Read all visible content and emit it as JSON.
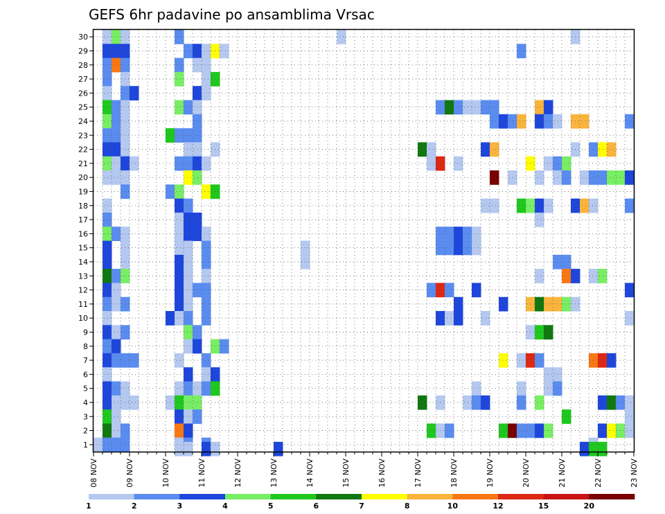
{
  "chart_data": {
    "type": "heatmap",
    "title": "GEFS 6hr padavine po ansamblima Vrsac",
    "x_tick_labels": [
      "08 NOV",
      "09 NOV",
      "10 NOV",
      "11 NOV",
      "12 NOV",
      "13 NOV",
      "14 NOV",
      "15 NOV",
      "16 NOV",
      "17 NOV",
      "18 NOV",
      "19 NOV",
      "20 NOV",
      "21 NOV",
      "22 NOV",
      "23 NOV"
    ],
    "xlim": [
      0,
      60
    ],
    "ylim": [
      0.5,
      30.5
    ],
    "y_ticks": [
      1,
      2,
      3,
      4,
      5,
      6,
      7,
      8,
      9,
      10,
      11,
      12,
      13,
      14,
      15,
      16,
      17,
      18,
      19,
      20,
      21,
      22,
      23,
      24,
      25,
      26,
      27,
      28,
      29,
      30
    ],
    "grid": true,
    "legend_placement": "bottom",
    "color_scale": {
      "labels": [
        "1",
        "2",
        "3",
        "4",
        "5",
        "6",
        "7",
        "8",
        "10",
        "12",
        "15",
        "20"
      ],
      "colors": [
        "#b4c8f0",
        "#5a8cf0",
        "#1e46dc",
        "#78ee64",
        "#1ec81e",
        "#10780f",
        "#ffff00",
        "#fab43c",
        "#fa7814",
        "#dc2814",
        "#c81414",
        "#780000"
      ]
    },
    "cells": [
      [
        1,
        30,
        0
      ],
      [
        2,
        30,
        3
      ],
      [
        3,
        30,
        0
      ],
      [
        9,
        30,
        1
      ],
      [
        27,
        30,
        0
      ],
      [
        53,
        30,
        0
      ],
      [
        1,
        29,
        2
      ],
      [
        2,
        29,
        2
      ],
      [
        3,
        29,
        2
      ],
      [
        10,
        29,
        1
      ],
      [
        11,
        29,
        2
      ],
      [
        12,
        29,
        0
      ],
      [
        13,
        29,
        6
      ],
      [
        14,
        29,
        0
      ],
      [
        47,
        29,
        1
      ],
      [
        1,
        28,
        1
      ],
      [
        2,
        28,
        8
      ],
      [
        3,
        28,
        1
      ],
      [
        9,
        28,
        1
      ],
      [
        11,
        28,
        0
      ],
      [
        12,
        28,
        0
      ],
      [
        1,
        27,
        1
      ],
      [
        3,
        27,
        0
      ],
      [
        9,
        27,
        3
      ],
      [
        12,
        27,
        0
      ],
      [
        13,
        27,
        4
      ],
      [
        1,
        26,
        0
      ],
      [
        3,
        26,
        1
      ],
      [
        4,
        26,
        2
      ],
      [
        11,
        26,
        2
      ],
      [
        12,
        26,
        0
      ],
      [
        1,
        25,
        4
      ],
      [
        2,
        25,
        1
      ],
      [
        3,
        25,
        0
      ],
      [
        9,
        25,
        3
      ],
      [
        10,
        25,
        1
      ],
      [
        11,
        25,
        0
      ],
      [
        38,
        25,
        1
      ],
      [
        39,
        25,
        5
      ],
      [
        40,
        25,
        1
      ],
      [
        41,
        25,
        0
      ],
      [
        42,
        25,
        0
      ],
      [
        43,
        25,
        1
      ],
      [
        44,
        25,
        1
      ],
      [
        49,
        25,
        7
      ],
      [
        50,
        25,
        2
      ],
      [
        1,
        24,
        3
      ],
      [
        2,
        24,
        1
      ],
      [
        3,
        24,
        0
      ],
      [
        11,
        24,
        1
      ],
      [
        44,
        24,
        1
      ],
      [
        45,
        24,
        2
      ],
      [
        46,
        24,
        1
      ],
      [
        47,
        24,
        7
      ],
      [
        49,
        24,
        2
      ],
      [
        50,
        24,
        1
      ],
      [
        51,
        24,
        0
      ],
      [
        53,
        24,
        7
      ],
      [
        54,
        24,
        7
      ],
      [
        59,
        24,
        1
      ],
      [
        1,
        23,
        1
      ],
      [
        2,
        23,
        1
      ],
      [
        3,
        23,
        0
      ],
      [
        8,
        23,
        4
      ],
      [
        9,
        23,
        1
      ],
      [
        10,
        23,
        1
      ],
      [
        11,
        23,
        1
      ],
      [
        1,
        22,
        2
      ],
      [
        2,
        22,
        2
      ],
      [
        3,
        22,
        0
      ],
      [
        10,
        22,
        0
      ],
      [
        11,
        22,
        0
      ],
      [
        13,
        22,
        0
      ],
      [
        36,
        22,
        5
      ],
      [
        37,
        22,
        0
      ],
      [
        43,
        22,
        2
      ],
      [
        44,
        22,
        7
      ],
      [
        53,
        22,
        0
      ],
      [
        55,
        22,
        1
      ],
      [
        56,
        22,
        6
      ],
      [
        57,
        22,
        7
      ],
      [
        1,
        21,
        3
      ],
      [
        2,
        21,
        0
      ],
      [
        3,
        21,
        2
      ],
      [
        4,
        21,
        0
      ],
      [
        9,
        21,
        1
      ],
      [
        10,
        21,
        1
      ],
      [
        11,
        21,
        2
      ],
      [
        12,
        21,
        0
      ],
      [
        37,
        21,
        0
      ],
      [
        38,
        21,
        9
      ],
      [
        40,
        21,
        0
      ],
      [
        48,
        21,
        6
      ],
      [
        50,
        21,
        0
      ],
      [
        51,
        21,
        1
      ],
      [
        52,
        21,
        3
      ],
      [
        1,
        20,
        0
      ],
      [
        2,
        20,
        0
      ],
      [
        3,
        20,
        0
      ],
      [
        10,
        20,
        6
      ],
      [
        11,
        20,
        3
      ],
      [
        44,
        20,
        11
      ],
      [
        46,
        20,
        0
      ],
      [
        49,
        20,
        0
      ],
      [
        51,
        20,
        0
      ],
      [
        52,
        20,
        1
      ],
      [
        54,
        20,
        0
      ],
      [
        55,
        20,
        1
      ],
      [
        56,
        20,
        1
      ],
      [
        57,
        20,
        3
      ],
      [
        58,
        20,
        3
      ],
      [
        59,
        20,
        2
      ],
      [
        3,
        19,
        1
      ],
      [
        8,
        19,
        1
      ],
      [
        9,
        19,
        3
      ],
      [
        12,
        19,
        6
      ],
      [
        13,
        19,
        4
      ],
      [
        1,
        18,
        0
      ],
      [
        9,
        18,
        2
      ],
      [
        10,
        18,
        1
      ],
      [
        43,
        18,
        0
      ],
      [
        44,
        18,
        0
      ],
      [
        47,
        18,
        4
      ],
      [
        48,
        18,
        3
      ],
      [
        49,
        18,
        2
      ],
      [
        50,
        18,
        0
      ],
      [
        53,
        18,
        2
      ],
      [
        54,
        18,
        7
      ],
      [
        55,
        18,
        0
      ],
      [
        59,
        18,
        1
      ],
      [
        1,
        17,
        1
      ],
      [
        9,
        17,
        0
      ],
      [
        10,
        17,
        2
      ],
      [
        11,
        17,
        2
      ],
      [
        49,
        17,
        0
      ],
      [
        1,
        16,
        3
      ],
      [
        2,
        16,
        1
      ],
      [
        3,
        16,
        0
      ],
      [
        9,
        16,
        0
      ],
      [
        10,
        16,
        2
      ],
      [
        11,
        16,
        2
      ],
      [
        12,
        16,
        0
      ],
      [
        38,
        16,
        1
      ],
      [
        39,
        16,
        1
      ],
      [
        40,
        16,
        2
      ],
      [
        41,
        16,
        1
      ],
      [
        42,
        16,
        0
      ],
      [
        1,
        15,
        2
      ],
      [
        3,
        15,
        0
      ],
      [
        9,
        15,
        0
      ],
      [
        10,
        15,
        0
      ],
      [
        12,
        15,
        1
      ],
      [
        23,
        15,
        0
      ],
      [
        38,
        15,
        1
      ],
      [
        39,
        15,
        1
      ],
      [
        40,
        15,
        2
      ],
      [
        41,
        15,
        1
      ],
      [
        42,
        15,
        0
      ],
      [
        1,
        14,
        2
      ],
      [
        3,
        14,
        0
      ],
      [
        9,
        14,
        2
      ],
      [
        10,
        14,
        0
      ],
      [
        12,
        14,
        1
      ],
      [
        23,
        14,
        0
      ],
      [
        51,
        14,
        1
      ],
      [
        52,
        14,
        1
      ],
      [
        1,
        13,
        5
      ],
      [
        2,
        13,
        1
      ],
      [
        3,
        13,
        3
      ],
      [
        9,
        13,
        2
      ],
      [
        10,
        13,
        0
      ],
      [
        12,
        13,
        0
      ],
      [
        49,
        13,
        0
      ],
      [
        52,
        13,
        8
      ],
      [
        53,
        13,
        2
      ],
      [
        55,
        13,
        0
      ],
      [
        56,
        13,
        3
      ],
      [
        1,
        12,
        2
      ],
      [
        2,
        12,
        0
      ],
      [
        9,
        12,
        2
      ],
      [
        10,
        12,
        0
      ],
      [
        11,
        12,
        1
      ],
      [
        12,
        12,
        1
      ],
      [
        37,
        12,
        1
      ],
      [
        38,
        12,
        9
      ],
      [
        39,
        12,
        1
      ],
      [
        42,
        12,
        2
      ],
      [
        59,
        12,
        2
      ],
      [
        1,
        11,
        1
      ],
      [
        2,
        11,
        0
      ],
      [
        3,
        11,
        1
      ],
      [
        9,
        11,
        2
      ],
      [
        10,
        11,
        0
      ],
      [
        12,
        11,
        1
      ],
      [
        40,
        11,
        2
      ],
      [
        45,
        11,
        2
      ],
      [
        48,
        11,
        7
      ],
      [
        49,
        11,
        5
      ],
      [
        50,
        11,
        7
      ],
      [
        51,
        11,
        7
      ],
      [
        52,
        11,
        3
      ],
      [
        53,
        11,
        0
      ],
      [
        1,
        10,
        0
      ],
      [
        8,
        10,
        2
      ],
      [
        9,
        10,
        0
      ],
      [
        10,
        10,
        1
      ],
      [
        12,
        10,
        1
      ],
      [
        38,
        10,
        2
      ],
      [
        39,
        10,
        0
      ],
      [
        40,
        10,
        2
      ],
      [
        43,
        10,
        0
      ],
      [
        59,
        10,
        0
      ],
      [
        1,
        9,
        2
      ],
      [
        2,
        9,
        0
      ],
      [
        3,
        9,
        1
      ],
      [
        10,
        9,
        3
      ],
      [
        11,
        9,
        1
      ],
      [
        48,
        9,
        0
      ],
      [
        49,
        9,
        4
      ],
      [
        50,
        9,
        5
      ],
      [
        1,
        8,
        1
      ],
      [
        2,
        8,
        2
      ],
      [
        10,
        8,
        0
      ],
      [
        11,
        8,
        2
      ],
      [
        13,
        8,
        3
      ],
      [
        14,
        8,
        1
      ],
      [
        1,
        7,
        2
      ],
      [
        2,
        7,
        1
      ],
      [
        3,
        7,
        1
      ],
      [
        4,
        7,
        1
      ],
      [
        9,
        7,
        0
      ],
      [
        12,
        7,
        1
      ],
      [
        45,
        7,
        6
      ],
      [
        47,
        7,
        0
      ],
      [
        48,
        7,
        9
      ],
      [
        49,
        7,
        1
      ],
      [
        55,
        7,
        8
      ],
      [
        56,
        7,
        9
      ],
      [
        57,
        7,
        2
      ],
      [
        1,
        6,
        0
      ],
      [
        10,
        6,
        2
      ],
      [
        12,
        6,
        0
      ],
      [
        13,
        6,
        2
      ],
      [
        50,
        6,
        0
      ],
      [
        51,
        6,
        0
      ],
      [
        1,
        5,
        2
      ],
      [
        2,
        5,
        1
      ],
      [
        3,
        5,
        0
      ],
      [
        9,
        5,
        0
      ],
      [
        10,
        5,
        1
      ],
      [
        11,
        5,
        0
      ],
      [
        12,
        5,
        1
      ],
      [
        13,
        5,
        4
      ],
      [
        42,
        5,
        0
      ],
      [
        47,
        5,
        0
      ],
      [
        50,
        5,
        0
      ],
      [
        51,
        5,
        1
      ],
      [
        1,
        4,
        2
      ],
      [
        2,
        4,
        0
      ],
      [
        3,
        4,
        0
      ],
      [
        4,
        4,
        0
      ],
      [
        8,
        4,
        0
      ],
      [
        9,
        4,
        4
      ],
      [
        10,
        4,
        3
      ],
      [
        11,
        4,
        3
      ],
      [
        36,
        4,
        5
      ],
      [
        38,
        4,
        0
      ],
      [
        41,
        4,
        0
      ],
      [
        42,
        4,
        1
      ],
      [
        43,
        4,
        2
      ],
      [
        47,
        4,
        1
      ],
      [
        49,
        4,
        3
      ],
      [
        56,
        4,
        2
      ],
      [
        57,
        4,
        5
      ],
      [
        58,
        4,
        1
      ],
      [
        59,
        4,
        0
      ],
      [
        1,
        3,
        4
      ],
      [
        2,
        3,
        0
      ],
      [
        9,
        3,
        2
      ],
      [
        10,
        3,
        0
      ],
      [
        11,
        3,
        1
      ],
      [
        52,
        3,
        4
      ],
      [
        59,
        3,
        0
      ],
      [
        1,
        2,
        5
      ],
      [
        2,
        2,
        0
      ],
      [
        3,
        2,
        1
      ],
      [
        9,
        2,
        8
      ],
      [
        10,
        2,
        2
      ],
      [
        37,
        2,
        4
      ],
      [
        38,
        2,
        0
      ],
      [
        39,
        2,
        1
      ],
      [
        45,
        2,
        4
      ],
      [
        46,
        2,
        11
      ],
      [
        47,
        2,
        1
      ],
      [
        48,
        2,
        1
      ],
      [
        49,
        2,
        2
      ],
      [
        50,
        2,
        3
      ],
      [
        56,
        2,
        2
      ],
      [
        57,
        2,
        6
      ],
      [
        58,
        2,
        3
      ],
      [
        59,
        2,
        0
      ],
      [
        0,
        1,
        0
      ],
      [
        1,
        1,
        1
      ],
      [
        2,
        1,
        1
      ],
      [
        3,
        1,
        1
      ],
      [
        9,
        1,
        0
      ],
      [
        10,
        1,
        1
      ],
      [
        12,
        1,
        1
      ],
      [
        55,
        1,
        0
      ],
      [
        9,
        0.7,
        0
      ],
      [
        10,
        0.7,
        0
      ],
      [
        12,
        0.7,
        2
      ],
      [
        13,
        0.7,
        0
      ],
      [
        20,
        0.7,
        2
      ],
      [
        54,
        0.7,
        2
      ],
      [
        55,
        0.7,
        4
      ],
      [
        56,
        0.7,
        4
      ]
    ]
  }
}
